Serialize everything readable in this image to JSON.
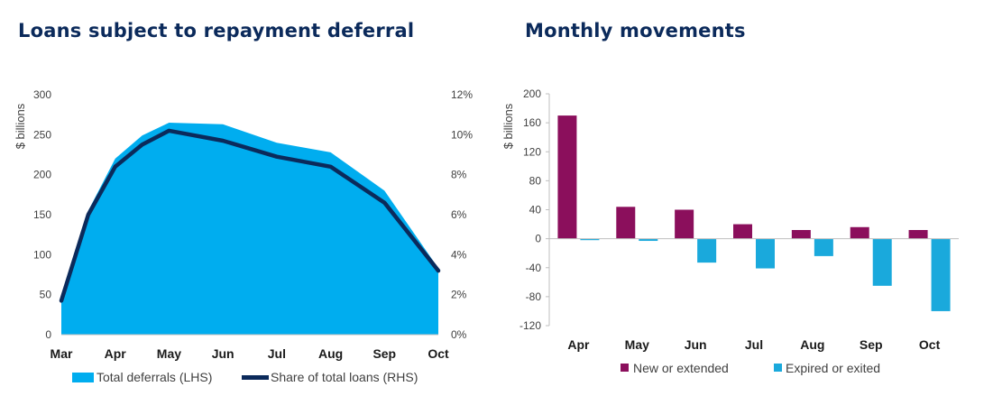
{
  "charts": [
    {
      "title": "Loans subject to repayment deferral",
      "chart_data": {
        "type": "area",
        "categories": [
          "Mar",
          "Apr",
          "May",
          "Jun",
          "Jul",
          "Aug",
          "Sep",
          "Oct"
        ],
        "series": [
          {
            "name": "Total deferrals (LHS)",
            "type": "area",
            "axis": "left",
            "color": "#00adef",
            "x": [
              0,
              0.5,
              1,
              1.5,
              2,
              3,
              4,
              5,
              6,
              7
            ],
            "values": [
              47,
              155,
              220,
              249,
              265,
              263,
              240,
              228,
              180,
              83
            ]
          },
          {
            "name": "Share of total loans (RHS)",
            "type": "line",
            "axis": "right",
            "color": "#0b2a5b",
            "x": [
              0,
              0.5,
              1,
              1.5,
              2,
              3,
              4,
              5,
              6,
              7
            ],
            "values": [
              1.7,
              6.0,
              8.4,
              9.5,
              10.2,
              9.7,
              8.9,
              8.4,
              6.6,
              3.2
            ]
          }
        ],
        "ylabel": "$ billions",
        "ylim": [
          0,
          300
        ],
        "yticks": [
          "0",
          "50",
          "100",
          "150",
          "200",
          "250",
          "300"
        ],
        "y2lim": [
          0,
          12
        ],
        "y2ticks": [
          "0%",
          "2%",
          "4%",
          "6%",
          "8%",
          "10%",
          "12%"
        ],
        "grid": false,
        "legend": "bottom"
      }
    },
    {
      "title": "Monthly movements",
      "chart_data": {
        "type": "bar",
        "categories": [
          "Apr",
          "May",
          "Jun",
          "Jul",
          "Aug",
          "Sep",
          "Oct"
        ],
        "series": [
          {
            "name": "New or extended",
            "color": "#8b0f5c",
            "values": [
              170,
              44,
              40,
              20,
              12,
              16,
              12
            ]
          },
          {
            "name": "Expired or exited",
            "color": "#1aa9dc",
            "values": [
              -2,
              -3,
              -33,
              -41,
              -24,
              -65,
              -100
            ]
          }
        ],
        "ylabel": "$ billions",
        "ylim": [
          -120,
          200
        ],
        "yticks": [
          "200",
          "160",
          "120",
          "80",
          "40",
          "0",
          "-40",
          "-80",
          "-120"
        ],
        "grid": false,
        "legend": "bottom"
      }
    }
  ]
}
